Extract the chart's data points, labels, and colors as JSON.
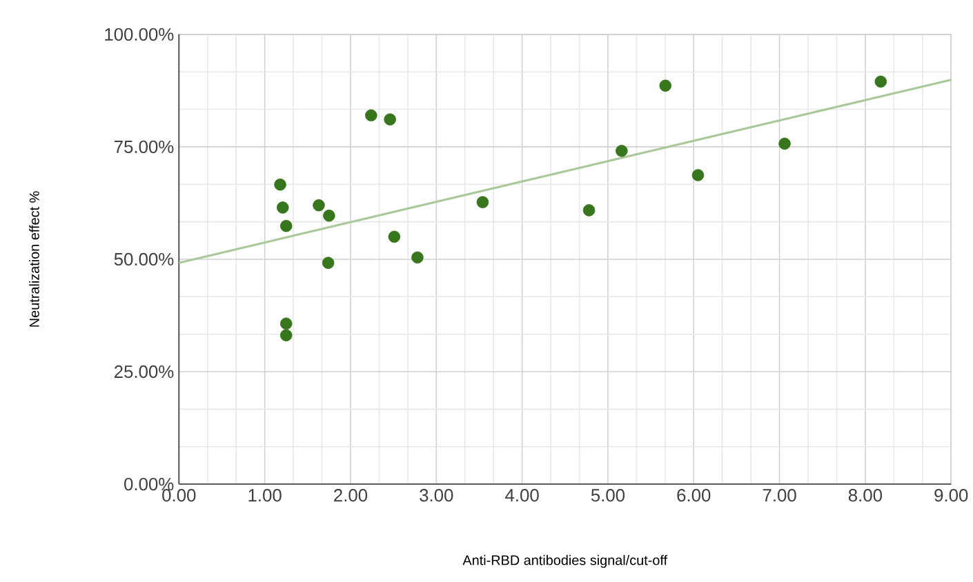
{
  "chart_data": {
    "type": "scatter",
    "xlabel": "Anti-RBD antibodies signal/cut-off",
    "ylabel": "Neutralization effect %",
    "series": [
      {
        "color": "#38761d",
        "marker": "circle",
        "x": [
          2.24,
          2.46,
          1.18,
          1.21,
          1.63,
          1.75,
          1.25,
          2.51,
          2.78,
          1.74,
          3.54,
          1.25,
          1.25,
          4.78,
          5.16,
          5.67,
          6.05,
          7.06,
          8.18
        ],
        "values": [
          82.0,
          81.1,
          66.6,
          61.5,
          62.0,
          59.7,
          57.4,
          55.0,
          50.4,
          49.2,
          62.7,
          35.7,
          33.1,
          60.9,
          74.1,
          88.6,
          68.7,
          75.7,
          89.5
        ]
      },
      {
        "type": "line",
        "color": "#a9c99a",
        "marker": "none",
        "x": [
          0,
          9
        ],
        "values": [
          49.2,
          89.9
        ]
      }
    ],
    "grid": true,
    "xlim": [
      0,
      9
    ],
    "ylim": [
      0,
      100
    ],
    "xticks": [
      {
        "value": 0,
        "label": "0.00"
      },
      {
        "value": 1,
        "label": "1.00"
      },
      {
        "value": 2,
        "label": "2.00"
      },
      {
        "value": 3,
        "label": "3.00"
      },
      {
        "value": 4,
        "label": "4.00"
      },
      {
        "value": 5,
        "label": "5.00"
      },
      {
        "value": 6,
        "label": "6.00"
      },
      {
        "value": 7,
        "label": "7.00"
      },
      {
        "value": 8,
        "label": "8.00"
      },
      {
        "value": 9,
        "label": "9.00"
      }
    ],
    "yticks": [
      {
        "value": 0,
        "label": "0.00%"
      },
      {
        "value": 25,
        "label": "25.00%"
      },
      {
        "value": 50,
        "label": "50.00%"
      },
      {
        "value": 75,
        "label": "75.00%"
      },
      {
        "value": 100,
        "label": "100.00%"
      }
    ]
  }
}
